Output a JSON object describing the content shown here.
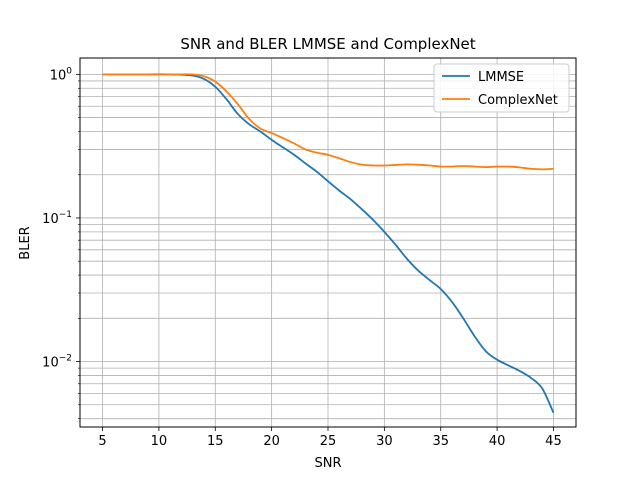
{
  "chart_data": {
    "type": "line",
    "title": "SNR and BLER LMMSE and ComplexNet",
    "xlabel": "SNR",
    "ylabel": "BLER",
    "xlim": [
      3,
      47
    ],
    "ylim": [
      0.0035,
      1.3
    ],
    "yscale": "log",
    "grid": "on (major and minor)",
    "legend_position": "top-right",
    "x_ticks": [
      5,
      10,
      15,
      20,
      25,
      30,
      35,
      40,
      45
    ],
    "y_ticks": [
      {
        "value": 0.01,
        "base": "10",
        "exp": "−2"
      },
      {
        "value": 0.1,
        "base": "10",
        "exp": "−1"
      },
      {
        "value": 1,
        "base": "10",
        "exp": "0"
      }
    ],
    "series": [
      {
        "name": "LMMSE",
        "color": "#1f77b4",
        "x": [
          5,
          7,
          9,
          11,
          13,
          14,
          15,
          16,
          17,
          18,
          19,
          20,
          21,
          22,
          23,
          24,
          25,
          26,
          27,
          28,
          29,
          30,
          31,
          32,
          33,
          34,
          35,
          36,
          37,
          38,
          39,
          40,
          41,
          42,
          43,
          44,
          45
        ],
        "y": [
          1.0,
          1.0,
          1.0,
          1.0,
          0.98,
          0.93,
          0.82,
          0.67,
          0.53,
          0.45,
          0.4,
          0.35,
          0.31,
          0.275,
          0.24,
          0.21,
          0.18,
          0.155,
          0.135,
          0.115,
          0.097,
          0.08,
          0.065,
          0.052,
          0.043,
          0.037,
          0.032,
          0.026,
          0.02,
          0.015,
          0.0118,
          0.0103,
          0.0094,
          0.0086,
          0.0077,
          0.0065,
          0.0044
        ]
      },
      {
        "name": "ComplexNet",
        "color": "#ff7f0e",
        "x": [
          5,
          7,
          9,
          11,
          12,
          13,
          14,
          15,
          16,
          17,
          18,
          19,
          20,
          21,
          22,
          23,
          24,
          25,
          26,
          27,
          28,
          29,
          30,
          31,
          32,
          33,
          34,
          35,
          36,
          37,
          38,
          39,
          40,
          41,
          42,
          43,
          44,
          45
        ],
        "y": [
          1.0,
          1.0,
          1.0,
          1.0,
          1.0,
          1.0,
          0.97,
          0.89,
          0.76,
          0.62,
          0.49,
          0.42,
          0.39,
          0.36,
          0.33,
          0.3,
          0.285,
          0.275,
          0.26,
          0.245,
          0.235,
          0.232,
          0.232,
          0.234,
          0.236,
          0.235,
          0.232,
          0.228,
          0.228,
          0.23,
          0.228,
          0.226,
          0.228,
          0.228,
          0.225,
          0.22,
          0.218,
          0.22
        ]
      }
    ]
  }
}
